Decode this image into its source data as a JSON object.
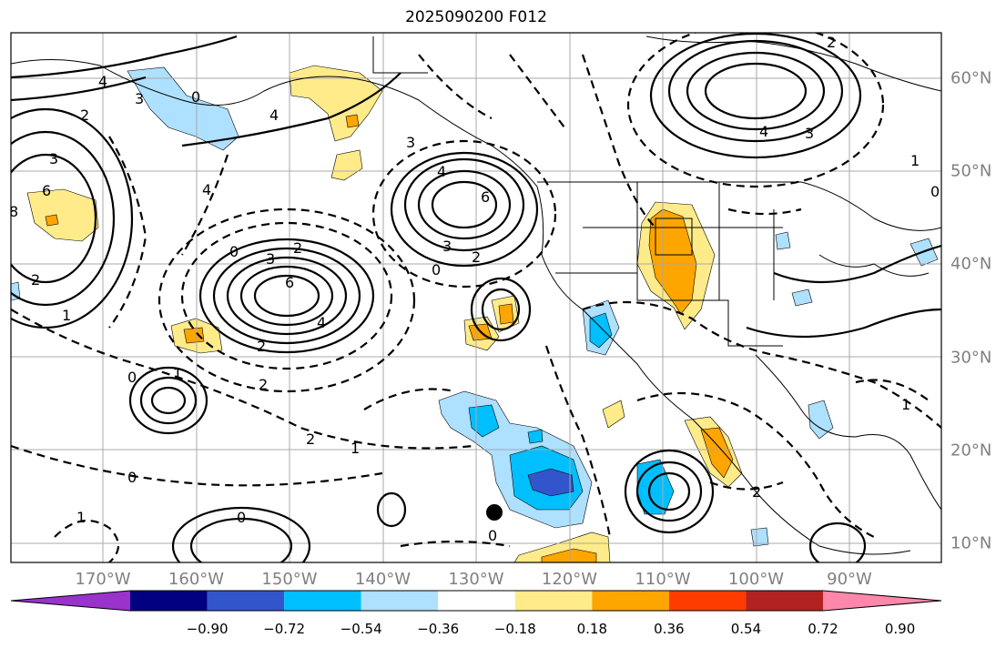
{
  "title": "2025090200 F012",
  "lat_labels": [
    {
      "value": 60,
      "text": "60°N"
    },
    {
      "value": 50,
      "text": "50°N"
    },
    {
      "value": 40,
      "text": "40°N"
    },
    {
      "value": 30,
      "text": "30°N"
    },
    {
      "value": 20,
      "text": "20°N"
    },
    {
      "value": 10,
      "text": "10°N"
    }
  ],
  "lon_labels": [
    {
      "value": -170,
      "text": "170°W"
    },
    {
      "value": -160,
      "text": "160°W"
    },
    {
      "value": -150,
      "text": "150°W"
    },
    {
      "value": -140,
      "text": "140°W"
    },
    {
      "value": -130,
      "text": "130°W"
    },
    {
      "value": -120,
      "text": "120°W"
    },
    {
      "value": -110,
      "text": "110°W"
    },
    {
      "value": -100,
      "text": "100°W"
    },
    {
      "value": -90,
      "text": "90°W"
    }
  ],
  "colorbar": {
    "colors": [
      "#9933cc",
      "#000080",
      "#3355cc",
      "#00bfff",
      "#aee0ff",
      "#ffffff",
      "#ffeb8a",
      "#ffa500",
      "#ff3c00",
      "#b22222",
      "#ff88aa"
    ],
    "tick_labels": [
      "−0.90",
      "−0.72",
      "−0.54",
      "−0.36",
      "−0.18",
      "0.18",
      "0.36",
      "0.54",
      "0.72",
      "0.90"
    ]
  },
  "contour_labels": [
    "4",
    "3",
    "2",
    "0",
    "4",
    "6",
    "8",
    "2",
    "1",
    "3",
    "4",
    "3",
    "6",
    "4",
    "2",
    "0",
    "2",
    "1",
    "0",
    "2",
    "3",
    "4",
    "6",
    "3",
    "2",
    "2",
    "1",
    "0",
    "0",
    "4",
    "3",
    "2",
    "1",
    "0",
    "1",
    "0",
    "2",
    "1",
    "0"
  ],
  "marker": "storm-position-dot"
}
